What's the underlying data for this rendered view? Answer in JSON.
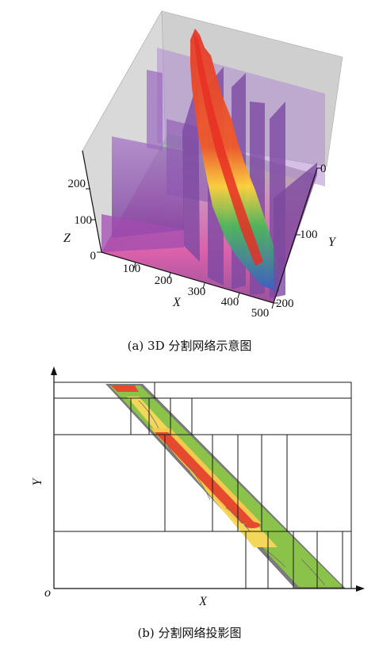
{
  "figure_a": {
    "caption": "(a)  3D 分割网络示意图",
    "z_label": "Z",
    "z_ticks": [
      "0",
      "100",
      "200"
    ],
    "x_label": "X",
    "x_ticks": [
      "100",
      "200",
      "300",
      "400",
      "500"
    ],
    "y_label": "Y",
    "y_ticks": [
      "0",
      "100",
      "200"
    ]
  },
  "figure_b": {
    "caption": "(b)  分割网络投影图",
    "origin_label": "o",
    "x_label": "X",
    "y_label": "Y"
  },
  "colors": {
    "wall": "#8c5aa8",
    "backdrop": "#c8c8c8",
    "floor": "#b35fb0",
    "peak": "#e83a2a",
    "band_green": "#8bc34a",
    "band_yellow": "#f3d75a",
    "band_red": "#e64a2e",
    "grid_line": "#1a1a1a"
  }
}
